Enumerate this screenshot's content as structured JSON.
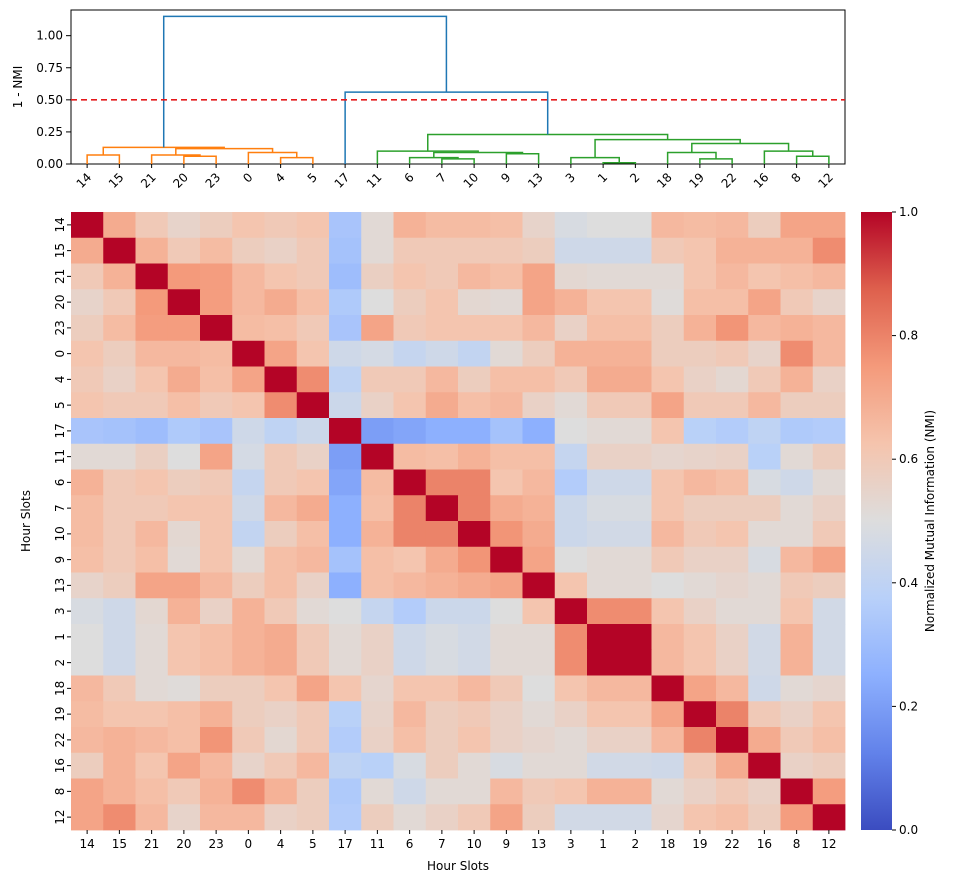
{
  "chart_data": [
    {
      "type": "dendrogram",
      "ylabel": "1 - NMI",
      "ylim": [
        0,
        1.2
      ],
      "yticks": [
        "0.00",
        "0.25",
        "0.50",
        "0.75",
        "1.00"
      ],
      "yticks_values": [
        0,
        0.25,
        0.5,
        0.75,
        1.0
      ],
      "leaf_order": [
        "14",
        "15",
        "21",
        "20",
        "23",
        "0",
        "4",
        "5",
        "17",
        "11",
        "6",
        "7",
        "10",
        "9",
        "13",
        "3",
        "1",
        "2",
        "18",
        "19",
        "22",
        "16",
        "8",
        "12"
      ],
      "threshold": 0.5,
      "threshold_color": "#e41a1c",
      "cluster_colors": {
        "orange": "#ff7f0e",
        "green": "#2ca02c",
        "blue": "#1f77b4"
      },
      "links": [
        {
          "a": "L0",
          "b": "L1",
          "h": 0.07,
          "color": "orange"
        },
        {
          "a": "L3",
          "b": "L4",
          "h": 0.06,
          "color": "orange"
        },
        {
          "a": "L2",
          "b": "N1",
          "h": 0.07,
          "color": "orange"
        },
        {
          "a": "L6",
          "b": "L7",
          "h": 0.05,
          "color": "orange"
        },
        {
          "a": "L5",
          "b": "N3",
          "h": 0.09,
          "color": "orange"
        },
        {
          "a": "N2",
          "b": "N4",
          "h": 0.12,
          "color": "orange"
        },
        {
          "a": "N0",
          "b": "N5",
          "h": 0.13,
          "color": "orange"
        },
        {
          "a": "L11",
          "b": "L12",
          "h": 0.04,
          "color": "green"
        },
        {
          "a": "L10",
          "b": "N7",
          "h": 0.05,
          "color": "green"
        },
        {
          "a": "L13",
          "b": "L14",
          "h": 0.08,
          "color": "green"
        },
        {
          "a": "N8",
          "b": "N9",
          "h": 0.09,
          "color": "green"
        },
        {
          "a": "L9",
          "b": "N10",
          "h": 0.1,
          "color": "green"
        },
        {
          "a": "L16",
          "b": "L17",
          "h": 0.01,
          "color": "green"
        },
        {
          "a": "L15",
          "b": "N12",
          "h": 0.05,
          "color": "green"
        },
        {
          "a": "L19",
          "b": "L20",
          "h": 0.04,
          "color": "green"
        },
        {
          "a": "L18",
          "b": "N14",
          "h": 0.09,
          "color": "green"
        },
        {
          "a": "L22",
          "b": "L23",
          "h": 0.06,
          "color": "green"
        },
        {
          "a": "L21",
          "b": "N16",
          "h": 0.1,
          "color": "green"
        },
        {
          "a": "N15",
          "b": "N17",
          "h": 0.16,
          "color": "green"
        },
        {
          "a": "N13",
          "b": "N18",
          "h": 0.19,
          "color": "green"
        },
        {
          "a": "N11",
          "b": "N19",
          "h": 0.23,
          "color": "green"
        },
        {
          "a": "L8",
          "b": "N20",
          "h": 0.56,
          "color": "blue"
        },
        {
          "a": "N6",
          "b": "N21",
          "h": 1.15,
          "color": "blue"
        }
      ]
    },
    {
      "type": "heatmap",
      "xlabel": "Hour Slots",
      "ylabel": "Hour Slots",
      "categories": [
        "14",
        "15",
        "21",
        "20",
        "23",
        "0",
        "4",
        "5",
        "17",
        "11",
        "6",
        "7",
        "10",
        "9",
        "13",
        "3",
        "1",
        "2",
        "18",
        "19",
        "22",
        "16",
        "8",
        "12"
      ],
      "colormap": "coolwarm",
      "vmin": 0,
      "vmax": 1,
      "colorbar_label": "Normalized Mutual Information (NMI)",
      "colorbar_ticks": [
        "0.0",
        "0.2",
        "0.4",
        "0.6",
        "0.8",
        "1.0"
      ],
      "colorbar_ticks_values": [
        0,
        0.2,
        0.4,
        0.6,
        0.8,
        1.0
      ],
      "values": [
        [
          1.0,
          0.7,
          0.6,
          0.55,
          0.58,
          0.62,
          0.6,
          0.62,
          0.33,
          0.52,
          0.68,
          0.65,
          0.65,
          0.64,
          0.55,
          0.48,
          0.5,
          0.5,
          0.66,
          0.65,
          0.66,
          0.58,
          0.72,
          0.72
        ],
        [
          0.7,
          1.0,
          0.68,
          0.6,
          0.65,
          0.58,
          0.56,
          0.6,
          0.32,
          0.52,
          0.6,
          0.6,
          0.6,
          0.6,
          0.58,
          0.45,
          0.45,
          0.45,
          0.6,
          0.62,
          0.68,
          0.68,
          0.68,
          0.78
        ],
        [
          0.6,
          0.68,
          1.0,
          0.75,
          0.74,
          0.66,
          0.62,
          0.6,
          0.3,
          0.57,
          0.62,
          0.6,
          0.66,
          0.64,
          0.72,
          0.53,
          0.52,
          0.52,
          0.52,
          0.62,
          0.66,
          0.62,
          0.64,
          0.66
        ],
        [
          0.55,
          0.6,
          0.75,
          1.0,
          0.74,
          0.66,
          0.7,
          0.64,
          0.35,
          0.5,
          0.58,
          0.62,
          0.53,
          0.52,
          0.72,
          0.68,
          0.62,
          0.62,
          0.51,
          0.64,
          0.64,
          0.72,
          0.6,
          0.55
        ],
        [
          0.58,
          0.65,
          0.74,
          0.74,
          1.0,
          0.65,
          0.64,
          0.6,
          0.33,
          0.72,
          0.6,
          0.62,
          0.62,
          0.62,
          0.66,
          0.56,
          0.64,
          0.64,
          0.58,
          0.68,
          0.76,
          0.66,
          0.68,
          0.66
        ],
        [
          0.62,
          0.58,
          0.66,
          0.66,
          0.65,
          1.0,
          0.72,
          0.62,
          0.45,
          0.47,
          0.42,
          0.45,
          0.41,
          0.52,
          0.58,
          0.68,
          0.68,
          0.68,
          0.58,
          0.58,
          0.6,
          0.55,
          0.78,
          0.66
        ],
        [
          0.6,
          0.56,
          0.62,
          0.7,
          0.64,
          0.72,
          1.0,
          0.78,
          0.4,
          0.6,
          0.6,
          0.66,
          0.58,
          0.64,
          0.64,
          0.6,
          0.7,
          0.7,
          0.62,
          0.56,
          0.53,
          0.6,
          0.68,
          0.56
        ],
        [
          0.62,
          0.6,
          0.6,
          0.64,
          0.6,
          0.62,
          0.78,
          1.0,
          0.44,
          0.56,
          0.62,
          0.7,
          0.64,
          0.66,
          0.56,
          0.52,
          0.6,
          0.6,
          0.72,
          0.6,
          0.6,
          0.66,
          0.58,
          0.58
        ],
        [
          0.33,
          0.32,
          0.3,
          0.35,
          0.33,
          0.45,
          0.4,
          0.44,
          1.0,
          0.2,
          0.22,
          0.25,
          0.25,
          0.32,
          0.25,
          0.5,
          0.52,
          0.52,
          0.62,
          0.38,
          0.36,
          0.4,
          0.35,
          0.36
        ],
        [
          0.52,
          0.52,
          0.57,
          0.5,
          0.72,
          0.47,
          0.6,
          0.56,
          0.2,
          1.0,
          0.65,
          0.64,
          0.68,
          0.64,
          0.64,
          0.42,
          0.56,
          0.56,
          0.54,
          0.55,
          0.56,
          0.38,
          0.52,
          0.58
        ],
        [
          0.68,
          0.6,
          0.62,
          0.58,
          0.6,
          0.42,
          0.6,
          0.62,
          0.22,
          0.65,
          1.0,
          0.8,
          0.8,
          0.62,
          0.66,
          0.36,
          0.45,
          0.45,
          0.62,
          0.66,
          0.64,
          0.48,
          0.45,
          0.52
        ],
        [
          0.65,
          0.6,
          0.6,
          0.62,
          0.62,
          0.45,
          0.66,
          0.7,
          0.25,
          0.64,
          0.8,
          1.0,
          0.8,
          0.7,
          0.68,
          0.44,
          0.48,
          0.48,
          0.62,
          0.58,
          0.58,
          0.58,
          0.52,
          0.56
        ],
        [
          0.65,
          0.6,
          0.66,
          0.53,
          0.62,
          0.41,
          0.58,
          0.64,
          0.25,
          0.68,
          0.8,
          0.8,
          1.0,
          0.76,
          0.7,
          0.44,
          0.46,
          0.46,
          0.66,
          0.6,
          0.62,
          0.52,
          0.52,
          0.6
        ],
        [
          0.64,
          0.6,
          0.64,
          0.52,
          0.62,
          0.52,
          0.64,
          0.66,
          0.32,
          0.64,
          0.62,
          0.7,
          0.76,
          1.0,
          0.72,
          0.5,
          0.52,
          0.52,
          0.6,
          0.56,
          0.56,
          0.48,
          0.66,
          0.72
        ],
        [
          0.55,
          0.58,
          0.72,
          0.72,
          0.66,
          0.58,
          0.64,
          0.56,
          0.25,
          0.64,
          0.66,
          0.68,
          0.7,
          0.72,
          1.0,
          0.62,
          0.52,
          0.52,
          0.5,
          0.52,
          0.54,
          0.52,
          0.6,
          0.58
        ],
        [
          0.48,
          0.45,
          0.53,
          0.68,
          0.56,
          0.68,
          0.6,
          0.52,
          0.5,
          0.42,
          0.36,
          0.44,
          0.44,
          0.5,
          0.62,
          1.0,
          0.78,
          0.78,
          0.62,
          0.56,
          0.52,
          0.52,
          0.62,
          0.46
        ],
        [
          0.5,
          0.45,
          0.52,
          0.62,
          0.64,
          0.68,
          0.7,
          0.6,
          0.52,
          0.56,
          0.45,
          0.48,
          0.46,
          0.52,
          0.52,
          0.78,
          1.0,
          1.0,
          0.66,
          0.62,
          0.56,
          0.46,
          0.68,
          0.46
        ],
        [
          0.5,
          0.45,
          0.52,
          0.62,
          0.64,
          0.68,
          0.7,
          0.6,
          0.52,
          0.56,
          0.45,
          0.48,
          0.46,
          0.52,
          0.52,
          0.78,
          1.0,
          1.0,
          0.66,
          0.62,
          0.56,
          0.46,
          0.68,
          0.46
        ],
        [
          0.66,
          0.6,
          0.52,
          0.51,
          0.58,
          0.58,
          0.62,
          0.72,
          0.62,
          0.54,
          0.62,
          0.62,
          0.66,
          0.6,
          0.5,
          0.62,
          0.66,
          0.66,
          1.0,
          0.72,
          0.66,
          0.45,
          0.52,
          0.54
        ],
        [
          0.65,
          0.62,
          0.62,
          0.64,
          0.68,
          0.58,
          0.56,
          0.6,
          0.38,
          0.55,
          0.66,
          0.58,
          0.6,
          0.56,
          0.52,
          0.56,
          0.62,
          0.62,
          0.72,
          1.0,
          0.8,
          0.6,
          0.56,
          0.62
        ],
        [
          0.66,
          0.68,
          0.66,
          0.64,
          0.76,
          0.6,
          0.53,
          0.6,
          0.36,
          0.56,
          0.64,
          0.58,
          0.62,
          0.56,
          0.54,
          0.52,
          0.56,
          0.56,
          0.66,
          0.8,
          1.0,
          0.7,
          0.6,
          0.64
        ],
        [
          0.58,
          0.68,
          0.62,
          0.72,
          0.66,
          0.55,
          0.6,
          0.66,
          0.4,
          0.38,
          0.48,
          0.58,
          0.52,
          0.48,
          0.52,
          0.52,
          0.46,
          0.46,
          0.45,
          0.6,
          0.7,
          1.0,
          0.56,
          0.58
        ],
        [
          0.72,
          0.68,
          0.64,
          0.6,
          0.68,
          0.78,
          0.68,
          0.58,
          0.35,
          0.52,
          0.45,
          0.52,
          0.52,
          0.66,
          0.6,
          0.62,
          0.68,
          0.68,
          0.52,
          0.56,
          0.6,
          0.56,
          1.0,
          0.74
        ],
        [
          0.72,
          0.78,
          0.66,
          0.55,
          0.66,
          0.66,
          0.56,
          0.58,
          0.36,
          0.58,
          0.52,
          0.56,
          0.6,
          0.72,
          0.58,
          0.46,
          0.46,
          0.46,
          0.54,
          0.62,
          0.64,
          0.58,
          0.74,
          1.0
        ]
      ]
    }
  ]
}
